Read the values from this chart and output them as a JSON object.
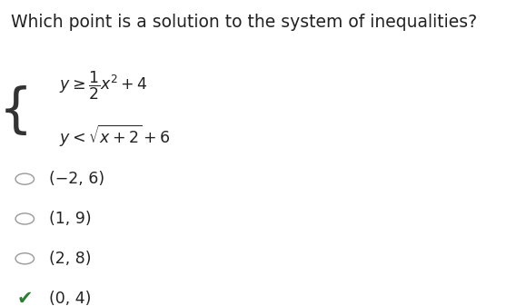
{
  "title": "Which point is a solution to the system of inequalities?",
  "title_fontsize": 13.5,
  "title_color": "#222222",
  "bg_color": "#ffffff",
  "eq1_text": "$y\\geq\\dfrac{1}{2}x^2+4$",
  "eq2_text": "$y<\\sqrt{x+2}+6$",
  "options": [
    "(−2, 6)",
    "(1, 9)",
    "(2, 8)",
    "(0, 4)"
  ],
  "correct_index": 3,
  "correct_color": "#2e7d32",
  "circle_color": "#999999",
  "option_fontsize": 12.5,
  "eq_fontsize": 12.5,
  "brace_color": "#333333"
}
